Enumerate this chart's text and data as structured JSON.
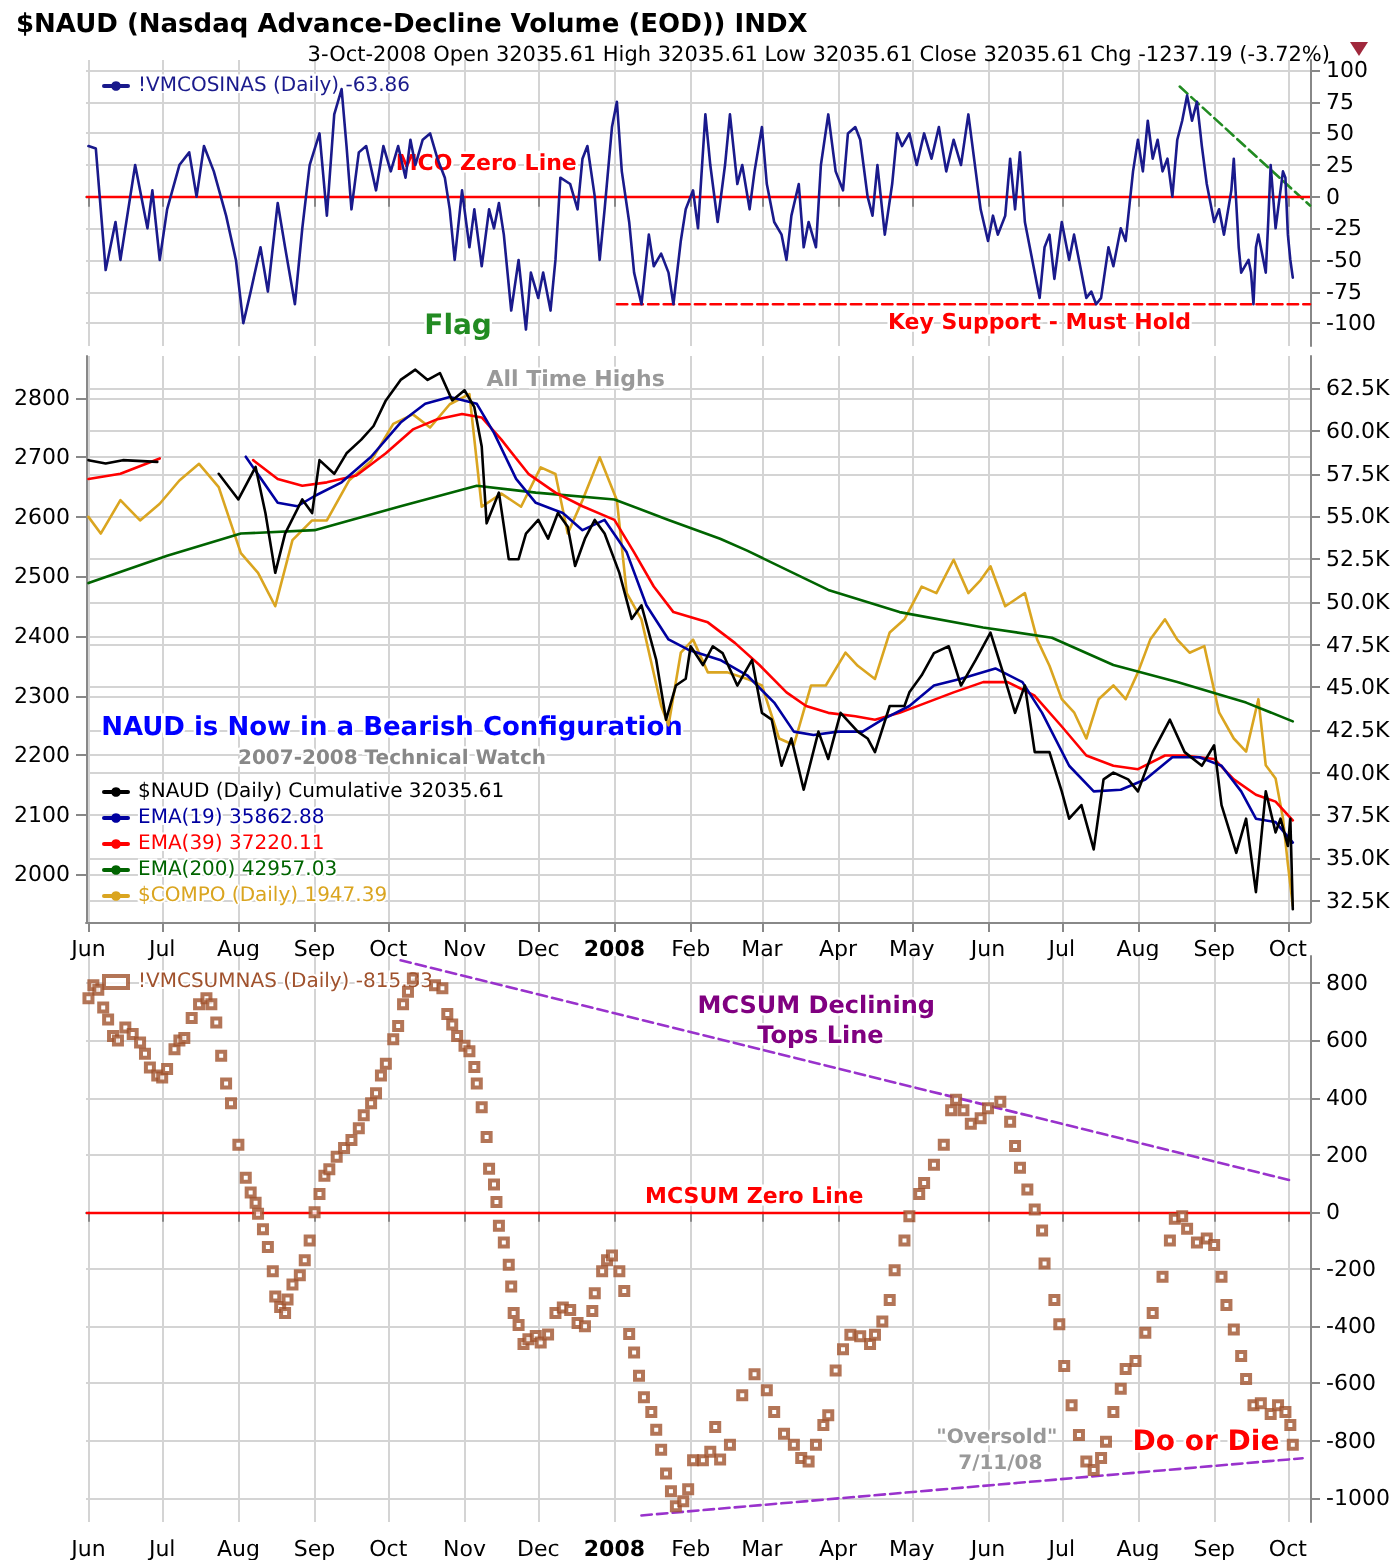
{
  "chart_data": [
    {
      "type": "line",
      "title": "$NAUD (Nasdaq Advance-Decline Volume (EOD)) INDX",
      "subtitle": "3-Oct-2008 Open 32035.61 High 32035.61 Low 32035.61 Close 32035.61 Chg -1237.19 (-3.72%)",
      "xlim": [
        "2007-05-31",
        "2008-10-10"
      ],
      "xticks": [
        {
          "value": "2007-06-01",
          "label": null
        },
        {
          "value": "2007-07-01",
          "label": null
        },
        {
          "value": "2007-08-01",
          "label": null
        },
        {
          "value": "2007-09-01",
          "label": null
        },
        {
          "value": "2007-10-01",
          "label": null
        },
        {
          "value": "2007-11-01",
          "label": null
        },
        {
          "value": "2007-12-01",
          "label": null
        },
        {
          "value": "2008-01-01",
          "label": null
        },
        {
          "value": "2008-02-01",
          "label": null
        },
        {
          "value": "2008-03-01",
          "label": null
        },
        {
          "value": "2008-04-01",
          "label": null
        },
        {
          "value": "2008-05-01",
          "label": null
        },
        {
          "value": "2008-06-01",
          "label": null
        },
        {
          "value": "2008-07-01",
          "label": null
        },
        {
          "value": "2008-08-01",
          "label": null
        },
        {
          "value": "2008-09-01",
          "label": null
        },
        {
          "value": "2008-10-01",
          "label": null
        }
      ],
      "ylim": [
        -118,
        108
      ],
      "yticks": [
        -100,
        -75,
        -50,
        -25,
        0,
        25,
        50,
        75,
        100
      ],
      "grid": true,
      "legend": "top left",
      "tick_labels": "y",
      "marker": "none",
      "line_style": "solid",
      "ref_lines": [
        {
          "axis": "y",
          "value": 0,
          "color": "#ff0000"
        }
      ],
      "annotations": [
        "MCO Zero Line",
        "Flag",
        "Key Support - Must Hold"
      ],
      "series": [
        {
          "name": "!VMCOSINAS (Daily) -63.86",
          "color": "#1a1a8c",
          "x": [
            "2007-06-01",
            "2007-06-04",
            "2007-06-08",
            "2007-06-12",
            "2007-06-14",
            "2007-06-20",
            "2007-06-25",
            "2007-06-27",
            "2007-06-30",
            "2007-07-03",
            "2007-07-08",
            "2007-07-12",
            "2007-07-15",
            "2007-07-18",
            "2007-07-22",
            "2007-07-27",
            "2007-07-31",
            "2007-08-03",
            "2007-08-06",
            "2007-08-10",
            "2007-08-13",
            "2007-08-17",
            "2007-08-20",
            "2007-08-24",
            "2007-08-27",
            "2007-08-30",
            "2007-09-03",
            "2007-09-06",
            "2007-09-09",
            "2007-09-12",
            "2007-09-14",
            "2007-09-16",
            "2007-09-19",
            "2007-09-22",
            "2007-09-26",
            "2007-09-29",
            "2007-10-02",
            "2007-10-05",
            "2007-10-08",
            "2007-10-10",
            "2007-10-12",
            "2007-10-15",
            "2007-10-18",
            "2007-10-21",
            "2007-10-24",
            "2007-10-26",
            "2007-10-28",
            "2007-10-31",
            "2007-11-03",
            "2007-11-05",
            "2007-11-08",
            "2007-11-11",
            "2007-11-13",
            "2007-11-15",
            "2007-11-17",
            "2007-11-20",
            "2007-11-23",
            "2007-11-26",
            "2007-11-28",
            "2007-12-01",
            "2007-12-03",
            "2007-12-06",
            "2007-12-08",
            "2007-12-10",
            "2007-12-14",
            "2007-12-17",
            "2007-12-19",
            "2007-12-21",
            "2007-12-24",
            "2007-12-26",
            "2007-12-28",
            "2007-12-31",
            "2008-01-02",
            "2008-01-04",
            "2008-01-07",
            "2008-01-09",
            "2008-01-12",
            "2008-01-15",
            "2008-01-17",
            "2008-01-20",
            "2008-01-23",
            "2008-01-25",
            "2008-01-28",
            "2008-01-30",
            "2008-02-02",
            "2008-02-04",
            "2008-02-07",
            "2008-02-09",
            "2008-02-12",
            "2008-02-15",
            "2008-02-17",
            "2008-02-20",
            "2008-02-22",
            "2008-02-25",
            "2008-02-27",
            "2008-03-01",
            "2008-03-03",
            "2008-03-06",
            "2008-03-09",
            "2008-03-11",
            "2008-03-13",
            "2008-03-16",
            "2008-03-18",
            "2008-03-20",
            "2008-03-23",
            "2008-03-25",
            "2008-03-28",
            "2008-03-31",
            "2008-04-03",
            "2008-04-05",
            "2008-04-08",
            "2008-04-10",
            "2008-04-13",
            "2008-04-15",
            "2008-04-17",
            "2008-04-20",
            "2008-04-23",
            "2008-04-25",
            "2008-04-27",
            "2008-04-30",
            "2008-05-03",
            "2008-05-06",
            "2008-05-09",
            "2008-05-12",
            "2008-05-15",
            "2008-05-18",
            "2008-05-21",
            "2008-05-24",
            "2008-05-27",
            "2008-05-29",
            "2008-06-01",
            "2008-06-03",
            "2008-06-05",
            "2008-06-08",
            "2008-06-10",
            "2008-06-12",
            "2008-06-14",
            "2008-06-16",
            "2008-06-19",
            "2008-06-22",
            "2008-06-24",
            "2008-06-26",
            "2008-06-28",
            "2008-07-01",
            "2008-07-04",
            "2008-07-06",
            "2008-07-09",
            "2008-07-11",
            "2008-07-13",
            "2008-07-15",
            "2008-07-17",
            "2008-07-20",
            "2008-07-22",
            "2008-07-25",
            "2008-07-27",
            "2008-07-30",
            "2008-08-01",
            "2008-08-03",
            "2008-08-05",
            "2008-08-07",
            "2008-08-09",
            "2008-08-11",
            "2008-08-13",
            "2008-08-15",
            "2008-08-17",
            "2008-08-19",
            "2008-08-21",
            "2008-08-23",
            "2008-08-25",
            "2008-08-27",
            "2008-08-29",
            "2008-09-01",
            "2008-09-03",
            "2008-09-05",
            "2008-09-08",
            "2008-09-09",
            "2008-09-11",
            "2008-09-12",
            "2008-09-15",
            "2008-09-16",
            "2008-09-17",
            "2008-09-18",
            "2008-09-19",
            "2008-09-22",
            "2008-09-23",
            "2008-09-24",
            "2008-09-25",
            "2008-09-26",
            "2008-09-29",
            "2008-09-30",
            "2008-10-01",
            "2008-10-02",
            "2008-10-03"
          ],
          "values": [
            40,
            38,
            -58,
            -20,
            -50,
            25,
            -25,
            5,
            -50,
            -10,
            25,
            35,
            0,
            40,
            20,
            -15,
            -50,
            -100,
            -75,
            -40,
            -75,
            -5,
            -40,
            -85,
            -25,
            25,
            50,
            -15,
            65,
            85,
            40,
            -10,
            35,
            40,
            5,
            40,
            20,
            40,
            15,
            45,
            25,
            45,
            50,
            30,
            15,
            -10,
            -50,
            5,
            -40,
            -10,
            -55,
            -10,
            -25,
            -5,
            -30,
            -90,
            -50,
            -105,
            -60,
            -80,
            -60,
            -90,
            -50,
            15,
            10,
            -10,
            30,
            40,
            0,
            -50,
            -10,
            55,
            75,
            20,
            -20,
            -60,
            -85,
            -30,
            -55,
            -45,
            -60,
            -85,
            -35,
            -10,
            5,
            -25,
            65,
            25,
            -20,
            25,
            65,
            10,
            25,
            -10,
            20,
            55,
            10,
            -20,
            -30,
            -50,
            -15,
            10,
            -40,
            -20,
            -40,
            25,
            65,
            20,
            5,
            50,
            55,
            45,
            0,
            -15,
            25,
            -30,
            10,
            50,
            40,
            50,
            25,
            50,
            30,
            55,
            20,
            45,
            25,
            65,
            20,
            -10,
            -35,
            -15,
            -30,
            -15,
            30,
            -10,
            35,
            -20,
            -50,
            -80,
            -40,
            -30,
            -65,
            -20,
            -50,
            -30,
            -60,
            -80,
            -75,
            -85,
            -80,
            -40,
            -55,
            -25,
            -35,
            20,
            45,
            20,
            60,
            30,
            45,
            20,
            30,
            0,
            45,
            60,
            80,
            60,
            75,
            40,
            10,
            -20,
            -10,
            -30,
            5,
            30,
            -40,
            -60,
            -50,
            -60,
            -85,
            -40,
            -30,
            -60,
            -20,
            25,
            0,
            -25,
            20,
            15,
            -30,
            -50,
            -64
          ]
        },
        {
          "color": "#228b22",
          "line_style": "dashed",
          "x": [
            "2008-08-18",
            "2008-10-10"
          ],
          "values": [
            87,
            -7
          ]
        },
        {
          "color": "#ff0000",
          "line_style": "dashed",
          "x": [
            "2008-01-02",
            "2008-10-10"
          ],
          "values": [
            -85,
            -85
          ]
        }
      ]
    },
    {
      "type": "line",
      "xlim": [
        "2007-05-31",
        "2008-10-10"
      ],
      "xticks": [
        {
          "value": "2007-06-01",
          "label": "Jun"
        },
        {
          "value": "2007-07-01",
          "label": "Jul"
        },
        {
          "value": "2007-08-01",
          "label": "Aug"
        },
        {
          "value": "2007-09-01",
          "label": "Sep"
        },
        {
          "value": "2007-10-01",
          "label": "Oct"
        },
        {
          "value": "2007-11-01",
          "label": "Nov"
        },
        {
          "value": "2007-12-01",
          "label": "Dec"
        },
        {
          "value": "2008-01-01",
          "label": "2008"
        },
        {
          "value": "2008-02-01",
          "label": "Feb"
        },
        {
          "value": "2008-03-01",
          "label": "Mar"
        },
        {
          "value": "2008-04-01",
          "label": "Apr"
        },
        {
          "value": "2008-05-01",
          "label": "May"
        },
        {
          "value": "2008-06-01",
          "label": "Jun"
        },
        {
          "value": "2008-07-01",
          "label": "Jul"
        },
        {
          "value": "2008-08-01",
          "label": "Aug"
        },
        {
          "value": "2008-09-01",
          "label": "Sep"
        },
        {
          "value": "2008-10-01",
          "label": "Oct"
        }
      ],
      "ylim": [
        1920,
        2870
      ],
      "yticks": [
        2000,
        2100,
        2200,
        2300,
        2400,
        2500,
        2600,
        2700,
        2800
      ],
      "y2lim": [
        31250,
        64400
      ],
      "y2ticks": [
        {
          "value": 32500,
          "label": "32.5K"
        },
        {
          "value": 35000,
          "label": "35.0K"
        },
        {
          "value": 37500,
          "label": "37.5K"
        },
        {
          "value": 40000,
          "label": "40.0K"
        },
        {
          "value": 42500,
          "label": "42.5K"
        },
        {
          "value": 45000,
          "label": "45.0K"
        },
        {
          "value": 47500,
          "label": "47.5K"
        },
        {
          "value": 50000,
          "label": "50.0K"
        },
        {
          "value": 52500,
          "label": "52.5K"
        },
        {
          "value": 55000,
          "label": "55.0K"
        },
        {
          "value": 57500,
          "label": "57.5K"
        },
        {
          "value": 60000,
          "label": "60.0K"
        },
        {
          "value": 62500,
          "label": "62.5K"
        }
      ],
      "grid": true,
      "legend": "bottom left",
      "marker": "none",
      "line_style": "solid",
      "annotations": [
        "All Time Highs",
        "NAUD is Now in a Bearish Configuration",
        "2007-2008 Technical Watch"
      ],
      "series": [
        {
          "name": "$NAUD (Daily) Cumulative 32035.61",
          "color": "#000000",
          "axis": "y2",
          "x": [
            "2007-06-01",
            "2007-06-08",
            "2007-06-15",
            "2007-06-29",
            "2007-07-10",
            "2007-07-24",
            "2007-08-01",
            "2007-08-08",
            "2007-08-12",
            "2007-08-16",
            "2007-08-20",
            "2007-08-27",
            "2007-08-31",
            "2007-09-03",
            "2007-09-09",
            "2007-09-14",
            "2007-09-20",
            "2007-09-25",
            "2007-09-30",
            "2007-10-06",
            "2007-10-12",
            "2007-10-17",
            "2007-10-22",
            "2007-10-27",
            "2007-11-01",
            "2007-11-05",
            "2007-11-08",
            "2007-11-10",
            "2007-11-15",
            "2007-11-19",
            "2007-11-23",
            "2007-11-26",
            "2007-12-01",
            "2007-12-05",
            "2007-12-09",
            "2007-12-13",
            "2007-12-16",
            "2007-12-20",
            "2007-12-24",
            "2007-12-28",
            "2008-01-03",
            "2008-01-08",
            "2008-01-12",
            "2008-01-18",
            "2008-01-22",
            "2008-01-26",
            "2008-01-30",
            "2008-02-01",
            "2008-02-06",
            "2008-02-10",
            "2008-02-14",
            "2008-02-20",
            "2008-02-26",
            "2008-03-01",
            "2008-03-05",
            "2008-03-09",
            "2008-03-13",
            "2008-03-18",
            "2008-03-24",
            "2008-03-28",
            "2008-04-02",
            "2008-04-09",
            "2008-04-13",
            "2008-04-16",
            "2008-04-22",
            "2008-04-28",
            "2008-04-30",
            "2008-05-05",
            "2008-05-10",
            "2008-05-16",
            "2008-05-21",
            "2008-05-27",
            "2008-06-02",
            "2008-06-07",
            "2008-06-12",
            "2008-06-16",
            "2008-06-20",
            "2008-06-26",
            "2008-07-01",
            "2008-07-04",
            "2008-07-09",
            "2008-07-14",
            "2008-07-18",
            "2008-07-22",
            "2008-07-28",
            "2008-08-01",
            "2008-08-07",
            "2008-08-14",
            "2008-08-20",
            "2008-08-27",
            "2008-09-01",
            "2008-09-04",
            "2008-09-10",
            "2008-09-14",
            "2008-09-18",
            "2008-09-22",
            "2008-09-26",
            "2008-09-28",
            "2008-10-01",
            "2008-10-02",
            "2008-10-03"
          ],
          "values": [
            58300,
            58100,
            58300,
            58200,
            null,
            57500,
            56000,
            57900,
            55200,
            51700,
            54000,
            56000,
            55200,
            58300,
            57500,
            58700,
            59500,
            60300,
            61800,
            63000,
            63600,
            63000,
            63400,
            61800,
            62400,
            61400,
            59100,
            54600,
            56400,
            52500,
            52500,
            54000,
            54800,
            53700,
            55200,
            54400,
            52100,
            53700,
            54800,
            54000,
            51700,
            49000,
            49800,
            46600,
            43100,
            45100,
            45500,
            47400,
            46300,
            47400,
            47000,
            45100,
            46600,
            43500,
            43100,
            40400,
            42000,
            39000,
            42400,
            40800,
            43500,
            42400,
            42000,
            41200,
            43900,
            43900,
            44700,
            45700,
            47000,
            47400,
            45100,
            46600,
            48200,
            45900,
            43500,
            45100,
            41200,
            41200,
            38900,
            37300,
            38100,
            35500,
            39600,
            40000,
            39600,
            38900,
            41200,
            43100,
            41200,
            40400,
            41600,
            38100,
            35300,
            37300,
            33000,
            38900,
            36500,
            37300,
            35700,
            37300,
            32000
          ]
        },
        {
          "name": "EMA(19) 35862.88",
          "color": "#0000a0",
          "axis": "y2",
          "x": [
            "2007-08-04",
            "2007-08-17",
            "2007-08-25",
            "2007-09-01",
            "2007-09-12",
            "2007-09-24",
            "2007-10-06",
            "2007-10-16",
            "2007-10-26",
            "2007-11-06",
            "2007-11-13",
            "2007-11-22",
            "2007-11-30",
            "2007-12-11",
            "2007-12-19",
            "2007-12-28",
            "2008-01-06",
            "2008-01-14",
            "2008-01-23",
            "2008-01-31",
            "2008-02-13",
            "2008-02-24",
            "2008-03-06",
            "2008-03-14",
            "2008-03-22",
            "2008-04-01",
            "2008-04-11",
            "2008-04-19",
            "2008-04-30",
            "2008-05-10",
            "2008-05-21",
            "2008-06-04",
            "2008-06-15",
            "2008-06-23",
            "2008-07-04",
            "2008-07-14",
            "2008-07-25",
            "2008-08-04",
            "2008-08-15",
            "2008-08-26",
            "2008-09-04",
            "2008-09-12",
            "2008-09-18",
            "2008-09-26",
            "2008-10-03"
          ],
          "values": [
            58500,
            55800,
            55600,
            56200,
            57000,
            58500,
            60500,
            61600,
            62000,
            61600,
            59900,
            57200,
            55800,
            55200,
            54200,
            54800,
            52900,
            49800,
            47800,
            47200,
            46600,
            45700,
            44100,
            42400,
            42200,
            42400,
            42400,
            43100,
            43900,
            45100,
            45500,
            46100,
            45300,
            43500,
            40400,
            38900,
            39000,
            39600,
            40900,
            40900,
            40400,
            38900,
            37300,
            37100,
            35900
          ]
        },
        {
          "name": "EMA(39) 37220.11",
          "color": "#ff0000",
          "axis": "y2",
          "x": [
            "2007-06-01",
            "2007-06-14",
            "2007-06-30",
            "2007-07-15",
            "2007-08-07",
            "2007-08-17",
            "2007-08-27",
            "2007-09-06",
            "2007-09-18",
            "2007-09-30",
            "2007-10-11",
            "2007-10-21",
            "2007-10-31",
            "2007-11-08",
            "2007-11-16",
            "2007-11-27",
            "2007-12-08",
            "2007-12-19",
            "2008-01-01",
            "2008-01-09",
            "2008-01-17",
            "2008-01-25",
            "2008-02-08",
            "2008-02-19",
            "2008-02-29",
            "2008-03-11",
            "2008-03-19",
            "2008-03-28",
            "2008-04-08",
            "2008-04-16",
            "2008-04-26",
            "2008-05-07",
            "2008-05-18",
            "2008-05-30",
            "2008-06-09",
            "2008-06-20",
            "2008-07-01",
            "2008-07-11",
            "2008-07-22",
            "2008-08-01",
            "2008-08-12",
            "2008-08-20",
            "2008-09-01",
            "2008-09-09",
            "2008-09-18",
            "2008-09-26",
            "2008-10-03"
          ],
          "values": [
            57200,
            57500,
            58400,
            null,
            58300,
            57200,
            56800,
            57000,
            57400,
            58700,
            60100,
            60700,
            61000,
            60800,
            59500,
            57500,
            56400,
            55600,
            54800,
            52900,
            50900,
            49400,
            48800,
            47600,
            46300,
            44700,
            43900,
            43500,
            43300,
            43100,
            43500,
            44100,
            44700,
            45300,
            45300,
            44500,
            42700,
            41000,
            40400,
            40200,
            41000,
            41000,
            40800,
            39600,
            38700,
            38300,
            37200
          ]
        },
        {
          "name": "EMA(200) 42957.03",
          "color": "#006400",
          "axis": "y2",
          "x": [
            "2007-06-01",
            "2007-07-03",
            "2007-08-02",
            "2007-09-01",
            "2007-10-06",
            "2007-11-06",
            "2007-11-30",
            "2008-01-01",
            "2008-01-23",
            "2008-02-13",
            "2008-02-24",
            "2008-03-28",
            "2008-04-26",
            "2008-05-30",
            "2008-06-27",
            "2008-07-22",
            "2008-08-17",
            "2008-09-14",
            "2008-10-03"
          ],
          "values": [
            51100,
            52700,
            54000,
            54200,
            55600,
            56800,
            56400,
            56000,
            54800,
            53700,
            53000,
            50700,
            49400,
            48500,
            47900,
            46300,
            45300,
            44100,
            43000
          ]
        },
        {
          "name": "$COMPO (Daily) 1947.39",
          "color": "#daa520",
          "x": [
            "2007-06-01",
            "2007-06-06",
            "2007-06-14",
            "2007-06-22",
            "2007-06-30",
            "2007-07-08",
            "2007-07-16",
            "2007-07-24",
            "2007-08-02",
            "2007-08-09",
            "2007-08-16",
            "2007-08-23",
            "2007-08-31",
            "2007-09-06",
            "2007-09-15",
            "2007-09-24",
            "2007-10-03",
            "2007-10-11",
            "2007-10-18",
            "2007-10-26",
            "2007-11-03",
            "2007-11-08",
            "2007-11-16",
            "2007-11-24",
            "2007-12-02",
            "2007-12-08",
            "2007-12-13",
            "2007-12-19",
            "2007-12-26",
            "2008-01-02",
            "2008-01-06",
            "2008-01-12",
            "2008-01-20",
            "2008-01-23",
            "2008-01-28",
            "2008-02-02",
            "2008-02-08",
            "2008-02-16",
            "2008-02-24",
            "2008-03-01",
            "2008-03-08",
            "2008-03-14",
            "2008-03-21",
            "2008-03-27",
            "2008-04-04",
            "2008-04-09",
            "2008-04-16",
            "2008-04-22",
            "2008-04-28",
            "2008-05-05",
            "2008-05-11",
            "2008-05-18",
            "2008-05-24",
            "2008-05-29",
            "2008-06-02",
            "2008-06-08",
            "2008-06-16",
            "2008-06-21",
            "2008-06-26",
            "2008-07-01",
            "2008-07-06",
            "2008-07-11",
            "2008-07-16",
            "2008-07-22",
            "2008-07-27",
            "2008-08-01",
            "2008-08-06",
            "2008-08-12",
            "2008-08-17",
            "2008-08-22",
            "2008-08-28",
            "2008-09-03",
            "2008-09-09",
            "2008-09-14",
            "2008-09-19",
            "2008-09-22",
            "2008-09-26",
            "2008-09-29",
            "2008-10-01",
            "2008-10-03"
          ],
          "values": [
            2600,
            2572,
            2628,
            2594,
            2622,
            2661,
            2689,
            2650,
            2539,
            2506,
            2450,
            2561,
            2594,
            2594,
            2661,
            2694,
            2756,
            2772,
            2750,
            2789,
            2806,
            2617,
            2639,
            2617,
            2683,
            2672,
            2572,
            2628,
            2700,
            2628,
            2472,
            2428,
            2283,
            2250,
            2372,
            2394,
            2339,
            2339,
            2328,
            2317,
            2228,
            2217,
            2317,
            2317,
            2372,
            2350,
            2328,
            2406,
            2428,
            2483,
            2472,
            2528,
            2472,
            2494,
            2517,
            2450,
            2472,
            2394,
            2350,
            2294,
            2272,
            2228,
            2294,
            2317,
            2294,
            2339,
            2394,
            2428,
            2394,
            2372,
            2383,
            2272,
            2228,
            2206,
            2294,
            2183,
            2161,
            2094,
            2017,
            1947
          ]
        }
      ]
    },
    {
      "type": "scatter",
      "xlim": [
        "2007-05-31",
        "2008-10-10"
      ],
      "xticks": [
        {
          "value": "2007-06-01",
          "label": "Jun"
        },
        {
          "value": "2007-07-01",
          "label": "Jul"
        },
        {
          "value": "2007-08-01",
          "label": "Aug"
        },
        {
          "value": "2007-09-01",
          "label": "Sep"
        },
        {
          "value": "2007-10-01",
          "label": "Oct"
        },
        {
          "value": "2007-11-01",
          "label": "Nov"
        },
        {
          "value": "2007-12-01",
          "label": "Dec"
        },
        {
          "value": "2008-01-01",
          "label": "2008"
        },
        {
          "value": "2008-02-01",
          "label": "Feb"
        },
        {
          "value": "2008-03-01",
          "label": "Mar"
        },
        {
          "value": "2008-04-01",
          "label": "Apr"
        },
        {
          "value": "2008-05-01",
          "label": "May"
        },
        {
          "value": "2008-06-01",
          "label": "Jun"
        },
        {
          "value": "2008-07-01",
          "label": "Jul"
        },
        {
          "value": "2008-08-01",
          "label": "Aug"
        },
        {
          "value": "2008-09-01",
          "label": "Sep"
        },
        {
          "value": "2008-10-01",
          "label": "Oct"
        }
      ],
      "ylim": [
        -1085,
        895
      ],
      "yticks": [
        -1000,
        -800,
        -600,
        -400,
        -200,
        0,
        200,
        400,
        600,
        800
      ],
      "grid": true,
      "legend": "top left",
      "marker": "square",
      "ref_lines": [
        {
          "axis": "y",
          "value": 0,
          "color": "#ff0000"
        }
      ],
      "annotations": [
        "MCSUM Declining Tops Line",
        "MCSUM Zero Line",
        "\"Oversold\" 7/11/08",
        "Do or Die"
      ],
      "series": [
        {
          "name": "!VMCSUMNAS (Daily) -815.33",
          "color": "#a0522d",
          "x": [
            "2007-06-01",
            "2007-06-03",
            "2007-06-05",
            "2007-06-07",
            "2007-06-09",
            "2007-06-11",
            "2007-06-13",
            "2007-06-16",
            "2007-06-19",
            "2007-06-22",
            "2007-06-24",
            "2007-06-26",
            "2007-06-29",
            "2007-07-01",
            "2007-07-03",
            "2007-07-06",
            "2007-07-08",
            "2007-07-10",
            "2007-07-13",
            "2007-07-16",
            "2007-07-19",
            "2007-07-21",
            "2007-07-23",
            "2007-07-25",
            "2007-07-27",
            "2007-07-29",
            "2007-08-01",
            "2007-08-04",
            "2007-08-06",
            "2007-08-08",
            "2007-08-09",
            "2007-08-11",
            "2007-08-13",
            "2007-08-15",
            "2007-08-16",
            "2007-08-18",
            "2007-08-20",
            "2007-08-21",
            "2007-08-23",
            "2007-08-26",
            "2007-08-28",
            "2007-08-30",
            "2007-09-01",
            "2007-09-03",
            "2007-09-05",
            "2007-09-07",
            "2007-09-10",
            "2007-09-13",
            "2007-09-16",
            "2007-09-19",
            "2007-09-21",
            "2007-09-24",
            "2007-09-26",
            "2007-09-28",
            "2007-09-30",
            "2007-10-03",
            "2007-10-05",
            "2007-10-07",
            "2007-10-09",
            "2007-10-11",
            "2007-10-20",
            "2007-10-23",
            "2007-10-25",
            "2007-10-27",
            "2007-10-29",
            "2007-11-01",
            "2007-11-03",
            "2007-11-05",
            "2007-11-06",
            "2007-11-08",
            "2007-11-10",
            "2007-11-11",
            "2007-11-13",
            "2007-11-14",
            "2007-11-15",
            "2007-11-17",
            "2007-11-19",
            "2007-11-20",
            "2007-11-21",
            "2007-11-23",
            "2007-11-25",
            "2007-11-27",
            "2007-11-30",
            "2007-12-02",
            "2007-12-05",
            "2007-12-08",
            "2007-12-11",
            "2007-12-14",
            "2007-12-17",
            "2007-12-20",
            "2007-12-23",
            "2007-12-24",
            "2007-12-27",
            "2007-12-29",
            "2007-12-31",
            "2008-01-03",
            "2008-01-05",
            "2008-01-07",
            "2008-01-09",
            "2008-01-11",
            "2008-01-13",
            "2008-01-16",
            "2008-01-18",
            "2008-01-20",
            "2008-01-22",
            "2008-01-24",
            "2008-01-26",
            "2008-01-29",
            "2008-01-31",
            "2008-02-02",
            "2008-02-06",
            "2008-02-09",
            "2008-02-11",
            "2008-02-13",
            "2008-02-17",
            "2008-02-22",
            "2008-02-27",
            "2008-03-03",
            "2008-03-06",
            "2008-03-10",
            "2008-03-14",
            "2008-03-17",
            "2008-03-20",
            "2008-03-23",
            "2008-03-26",
            "2008-03-28",
            "2008-03-31",
            "2008-04-03",
            "2008-04-06",
            "2008-04-10",
            "2008-04-14",
            "2008-04-16",
            "2008-04-19",
            "2008-04-22",
            "2008-04-24",
            "2008-04-28",
            "2008-04-30",
            "2008-05-04",
            "2008-05-06",
            "2008-05-10",
            "2008-05-14",
            "2008-05-17",
            "2008-05-19",
            "2008-05-22",
            "2008-05-25",
            "2008-05-29",
            "2008-06-01",
            "2008-06-06",
            "2008-06-10",
            "2008-06-12",
            "2008-06-14",
            "2008-06-17",
            "2008-06-20",
            "2008-06-23",
            "2008-06-24",
            "2008-06-28",
            "2008-06-30",
            "2008-07-02",
            "2008-07-05",
            "2008-07-08",
            "2008-07-11",
            "2008-07-14",
            "2008-07-17",
            "2008-07-19",
            "2008-07-22",
            "2008-07-25",
            "2008-07-27",
            "2008-07-31",
            "2008-08-04",
            "2008-08-07",
            "2008-08-11",
            "2008-08-14",
            "2008-08-16",
            "2008-08-19",
            "2008-08-21",
            "2008-08-25",
            "2008-08-29",
            "2008-09-01",
            "2008-09-04",
            "2008-09-06",
            "2008-09-09",
            "2008-09-12",
            "2008-09-14",
            "2008-09-17",
            "2008-09-20",
            "2008-09-24",
            "2008-09-27",
            "2008-09-30",
            "2008-10-02",
            "2008-10-03"
          ],
          "values": [
            747,
            793,
            777,
            715,
            673,
            615,
            599,
            645,
            622,
            592,
            553,
            505,
            477,
            470,
            500,
            569,
            599,
            608,
            678,
            726,
            747,
            726,
            662,
            546,
            449,
            380,
            235,
            119,
            68,
            32,
            -7,
            -61,
            -123,
            -208,
            -296,
            -333,
            -354,
            -307,
            -254,
            -222,
            -169,
            -100,
            -1,
            62,
            126,
            149,
            193,
            223,
            251,
            292,
            338,
            380,
            415,
            477,
            518,
            604,
            650,
            726,
            770,
            816,
            793,
            782,
            692,
            655,
            615,
            581,
            562,
            507,
            449,
            366,
            262,
            151,
            96,
            34,
            -49,
            -107,
            -185,
            -261,
            -354,
            -396,
            -462,
            -446,
            -434,
            -457,
            -429,
            -354,
            -335,
            -343,
            -389,
            -400,
            -347,
            -285,
            -208,
            -169,
            -153,
            -208,
            -277,
            -427,
            -492,
            -573,
            -649,
            -700,
            -762,
            -832,
            -915,
            -977,
            -1030,
            -1012,
            -970,
            -869,
            -869,
            -839,
            -753,
            -866,
            -815,
            -642,
            -568,
            -624,
            -700,
            -776,
            -815,
            -861,
            -873,
            -815,
            -746,
            -712,
            -555,
            -481,
            -430,
            -435,
            -462,
            -430,
            -384,
            -308,
            -204,
            -100,
            -15,
            62,
            101,
            165,
            235,
            355,
            392,
            355,
            308,
            327,
            362,
            385,
            315,
            230,
            154,
            78,
            8,
            -65,
            -181,
            -308,
            -393,
            -539,
            -677,
            -781,
            -873,
            -903,
            -861,
            -804,
            -700,
            -619,
            -550,
            -522,
            -423,
            -354,
            -227,
            -100,
            -24,
            -15,
            -59,
            -107,
            -93,
            -116,
            -227,
            -326,
            -412,
            -504,
            -585,
            -677,
            -670,
            -707,
            -677,
            -700,
            -746,
            -815
          ]
        },
        {
          "type": "line",
          "color": "#9932cc",
          "line_style": "dashed",
          "marker": "none",
          "x": [
            "2007-10-06",
            "2008-10-03"
          ],
          "values": [
            880,
            108
          ]
        },
        {
          "type": "line",
          "color": "#9932cc",
          "line_style": "dashed",
          "marker": "none",
          "x": [
            "2008-01-12",
            "2008-10-07"
          ],
          "values": [
            -1062,
            -862
          ]
        }
      ]
    }
  ]
}
